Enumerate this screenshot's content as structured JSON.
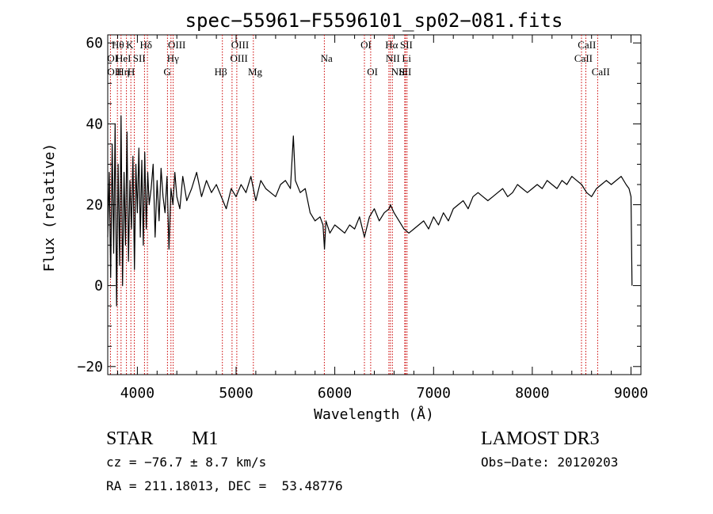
{
  "chart_data": {
    "type": "line",
    "title": "spec−55961−F5596101_sp02−081.fits",
    "xlabel": "Wavelength (Å)",
    "ylabel": "Flux (relative)",
    "xlim": [
      3700,
      9100
    ],
    "ylim": [
      -22,
      62
    ],
    "x_ticks": [
      4000,
      5000,
      6000,
      7000,
      8000,
      9000
    ],
    "x_tick_labels": [
      "4000",
      "5000",
      "6000",
      "7000",
      "8000",
      "9000"
    ],
    "y_ticks": [
      -20,
      0,
      20,
      40,
      60
    ],
    "y_tick_labels": [
      "−20",
      "0",
      "20",
      "40",
      "60"
    ],
    "series": [
      {
        "name": "flux",
        "x": [
          3700,
          3715,
          3730,
          3745,
          3760,
          3775,
          3790,
          3805,
          3820,
          3835,
          3850,
          3865,
          3880,
          3895,
          3910,
          3925,
          3940,
          3955,
          3970,
          3985,
          4000,
          4015,
          4030,
          4045,
          4060,
          4075,
          4090,
          4105,
          4120,
          4140,
          4160,
          4180,
          4200,
          4220,
          4240,
          4260,
          4280,
          4300,
          4320,
          4340,
          4360,
          4380,
          4400,
          4430,
          4460,
          4500,
          4550,
          4600,
          4650,
          4700,
          4750,
          4800,
          4850,
          4900,
          4950,
          5000,
          5050,
          5100,
          5150,
          5200,
          5250,
          5300,
          5350,
          5400,
          5450,
          5500,
          5550,
          5580,
          5600,
          5650,
          5700,
          5750,
          5800,
          5850,
          5880,
          5895,
          5910,
          5950,
          6000,
          6050,
          6100,
          6150,
          6200,
          6250,
          6300,
          6350,
          6400,
          6450,
          6500,
          6550,
          6563,
          6600,
          6650,
          6700,
          6750,
          6800,
          6850,
          6900,
          6950,
          7000,
          7050,
          7100,
          7150,
          7200,
          7250,
          7300,
          7350,
          7400,
          7450,
          7500,
          7550,
          7600,
          7650,
          7700,
          7750,
          7800,
          7850,
          7900,
          7950,
          8000,
          8050,
          8100,
          8150,
          8200,
          8250,
          8300,
          8350,
          8400,
          8450,
          8500,
          8550,
          8600,
          8650,
          8700,
          8750,
          8800,
          8850,
          8900,
          8950,
          8980,
          9000,
          9010
        ],
        "values": [
          12,
          28,
          2,
          35,
          8,
          40,
          -5,
          30,
          5,
          42,
          0,
          28,
          10,
          38,
          6,
          26,
          14,
          32,
          4,
          30,
          18,
          34,
          12,
          31,
          10,
          33,
          14,
          28,
          20,
          24,
          30,
          12,
          26,
          16,
          29,
          22,
          18,
          27,
          9,
          24,
          20,
          28,
          22,
          19,
          27,
          21,
          24,
          28,
          22,
          26,
          23,
          25,
          22,
          19,
          24,
          22,
          25,
          23,
          27,
          21,
          26,
          24,
          23,
          22,
          25,
          26,
          24,
          37,
          26,
          23,
          24,
          18,
          16,
          17,
          15,
          9,
          16,
          13,
          15,
          14,
          13,
          15,
          14,
          17,
          12,
          17,
          19,
          16,
          18,
          19,
          20,
          18,
          16,
          14,
          13,
          14,
          15,
          16,
          14,
          17,
          15,
          18,
          16,
          19,
          20,
          21,
          19,
          22,
          23,
          22,
          21,
          22,
          23,
          24,
          22,
          23,
          25,
          24,
          23,
          24,
          25,
          24,
          26,
          25,
          24,
          26,
          25,
          27,
          26,
          25,
          23,
          22,
          24,
          25,
          26,
          25,
          26,
          27,
          25,
          24,
          22,
          0
        ]
      }
    ],
    "lines": [
      {
        "name": "OII",
        "wavelength": 3727
      },
      {
        "name": "Hθ",
        "wavelength": 3798
      },
      {
        "name": "Hη",
        "wavelength": 3835
      },
      {
        "name": "K",
        "wavelength": 3934
      },
      {
        "name": "HeI",
        "wavelength": 3889
      },
      {
        "name": "H",
        "wavelength": 3969
      },
      {
        "name": "SII",
        "wavelength": 4072
      },
      {
        "name": "Hδ",
        "wavelength": 4102
      },
      {
        "name": "G",
        "wavelength": 4305
      },
      {
        "name": "Hγ",
        "wavelength": 4340
      },
      {
        "name": "OIII",
        "wavelength": 4363
      },
      {
        "name": "Hβ",
        "wavelength": 4861
      },
      {
        "name": "OIII",
        "wavelength": 4959
      },
      {
        "name": "OIII",
        "wavelength": 5007
      },
      {
        "name": "Mg",
        "wavelength": 5175
      },
      {
        "name": "Na",
        "wavelength": 5894
      },
      {
        "name": "OI",
        "wavelength": 6300
      },
      {
        "name": "OI",
        "wavelength": 6363
      },
      {
        "name": "NII",
        "wavelength": 6548
      },
      {
        "name": "Hα",
        "wavelength": 6563
      },
      {
        "name": "NII",
        "wavelength": 6583
      },
      {
        "name": "Li",
        "wavelength": 6708
      },
      {
        "name": "SII",
        "wavelength": 6716
      },
      {
        "name": "SII",
        "wavelength": 6731
      },
      {
        "name": "CaII",
        "wavelength": 8498
      },
      {
        "name": "CaII",
        "wavelength": 8542
      },
      {
        "name": "CaII",
        "wavelength": 8662
      }
    ],
    "line_labels": [
      {
        "text": "Hθ",
        "wavelength": 3740,
        "row": 1
      },
      {
        "text": "K",
        "wavelength": 3885,
        "row": 1
      },
      {
        "text": "Hδ",
        "wavelength": 4025,
        "row": 1
      },
      {
        "text": "OIII",
        "wavelength": 4310,
        "row": 1
      },
      {
        "text": "OIII",
        "wavelength": 4950,
        "row": 1
      },
      {
        "text": "OI",
        "wavelength": 6260,
        "row": 1
      },
      {
        "text": "Hα",
        "wavelength": 6510,
        "row": 1
      },
      {
        "text": "SII",
        "wavelength": 6660,
        "row": 1
      },
      {
        "text": "CaII",
        "wavelength": 8460,
        "row": 1
      },
      {
        "text": "OI",
        "wavelength": 3695,
        "row": 2
      },
      {
        "text": "HeI",
        "wavelength": 3780,
        "row": 2
      },
      {
        "text": "SII",
        "wavelength": 3955,
        "row": 2
      },
      {
        "text": "Hγ",
        "wavelength": 4300,
        "row": 2
      },
      {
        "text": "OIII",
        "wavelength": 4940,
        "row": 2
      },
      {
        "text": "Na",
        "wavelength": 5855,
        "row": 2
      },
      {
        "text": "NII",
        "wavelength": 6515,
        "row": 2
      },
      {
        "text": "Li",
        "wavelength": 6680,
        "row": 2
      },
      {
        "text": "CaII",
        "wavelength": 8425,
        "row": 2
      },
      {
        "text": "OII",
        "wavelength": 3695,
        "row": 3
      },
      {
        "text": "Hη",
        "wavelength": 3790,
        "row": 3
      },
      {
        "text": "H",
        "wavelength": 3900,
        "row": 3
      },
      {
        "text": "G",
        "wavelength": 4265,
        "row": 3
      },
      {
        "text": "Hβ",
        "wavelength": 4780,
        "row": 3
      },
      {
        "text": "Mg",
        "wavelength": 5120,
        "row": 3
      },
      {
        "text": "OI",
        "wavelength": 6325,
        "row": 3
      },
      {
        "text": "NII",
        "wavelength": 6570,
        "row": 3
      },
      {
        "text": "SII",
        "wavelength": 6648,
        "row": 3
      },
      {
        "text": "CaII",
        "wavelength": 8600,
        "row": 3
      }
    ],
    "colors": {
      "spectrum": "#000000",
      "lines": "#cc0000",
      "axes": "#000000"
    }
  },
  "info": {
    "class": "STAR",
    "subclass": "M1",
    "survey": "LAMOST DR3",
    "cz": "cz = −76.7 ± 8.7 km/s",
    "obs_date": "Obs−Date: 20120203",
    "coords": "RA = 211.18013, DEC =  53.48776"
  }
}
